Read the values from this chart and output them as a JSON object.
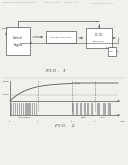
{
  "fig_width": 1.28,
  "fig_height": 1.65,
  "dpi": 100,
  "bg_color": "#f0f0ec",
  "line_color": "#555555",
  "text_color": "#333333",
  "fig1_label": "F I G .   1",
  "fig2_label": "F I G .   2"
}
